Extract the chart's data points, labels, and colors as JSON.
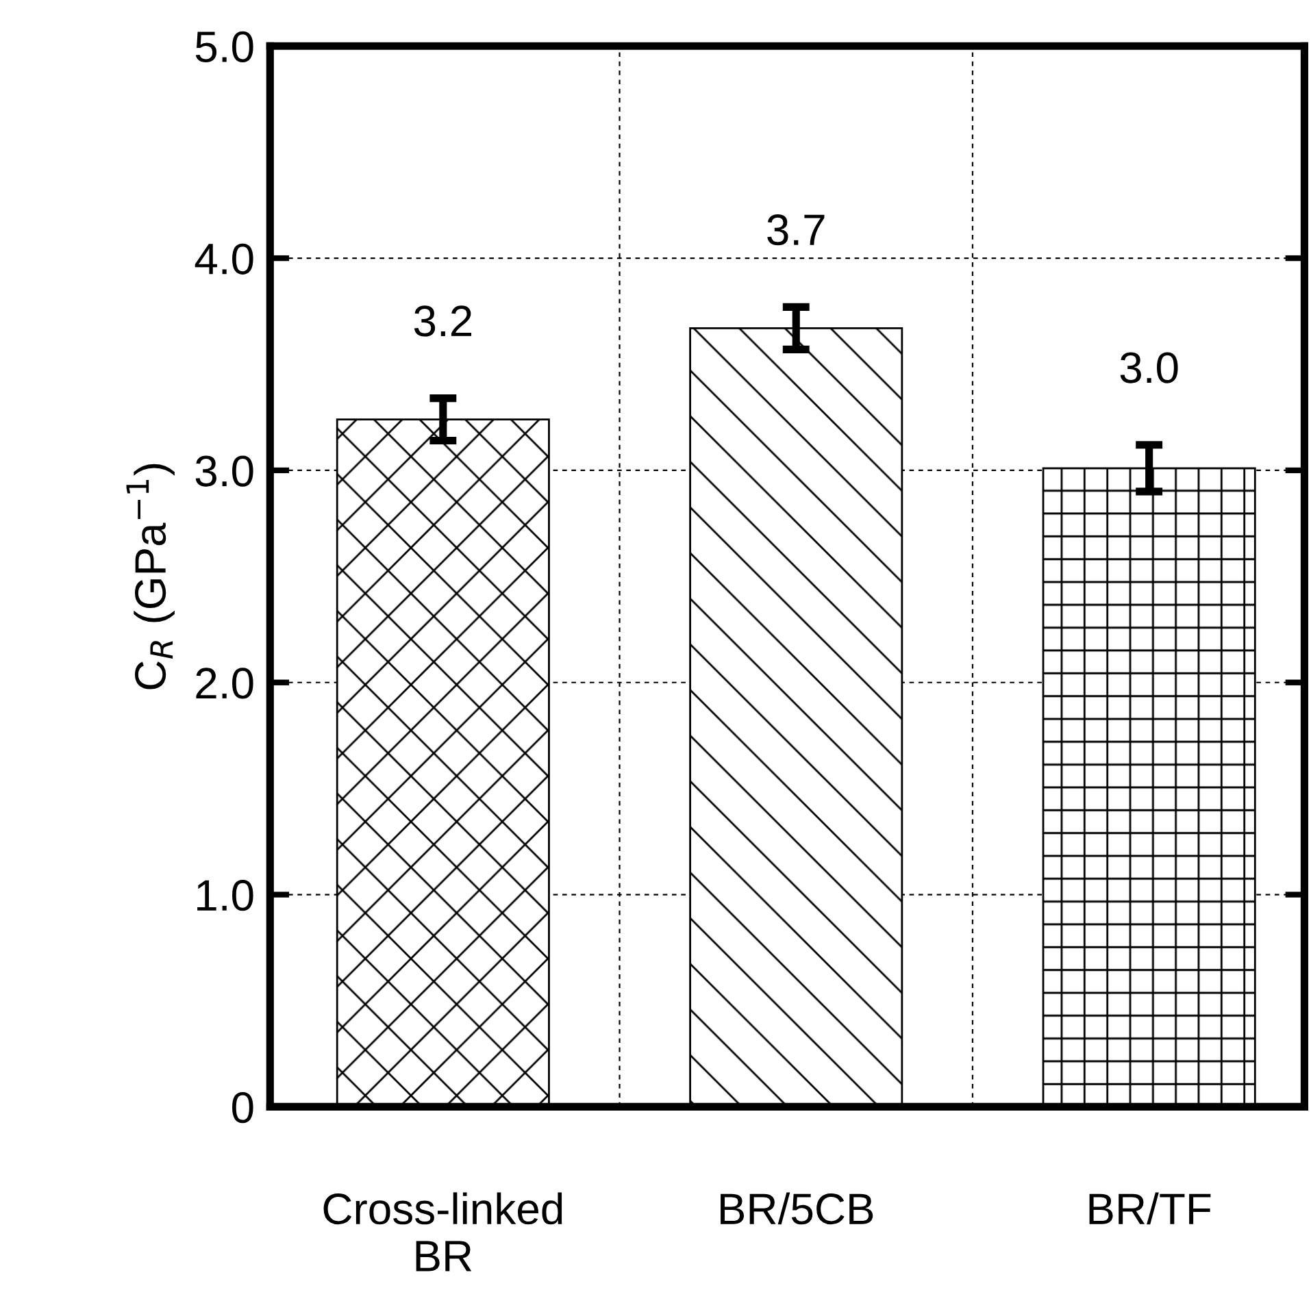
{
  "chart_data": {
    "type": "bar",
    "ylabel": "C$_{R}$ (GPa$^{−1}$)",
    "categories": [
      "Cross-linked\nBR",
      "BR/5CB",
      "BR/TF"
    ],
    "values": [
      3.24,
      3.67,
      3.01
    ],
    "errors": [
      0.1,
      0.1,
      0.11
    ],
    "value_labels": [
      "3.2",
      "3.7",
      "3.0"
    ],
    "color": "#000000",
    "ylim": [
      0,
      5.0
    ],
    "yticks": [
      {
        "value": 0,
        "label": "0"
      },
      {
        "value": 1,
        "label": "1.0"
      },
      {
        "value": 2,
        "label": "2.0"
      },
      {
        "value": 3,
        "label": "3.0"
      },
      {
        "value": 4,
        "label": "4.0"
      },
      {
        "value": 5,
        "label": "5.0"
      }
    ],
    "grid": true
  }
}
